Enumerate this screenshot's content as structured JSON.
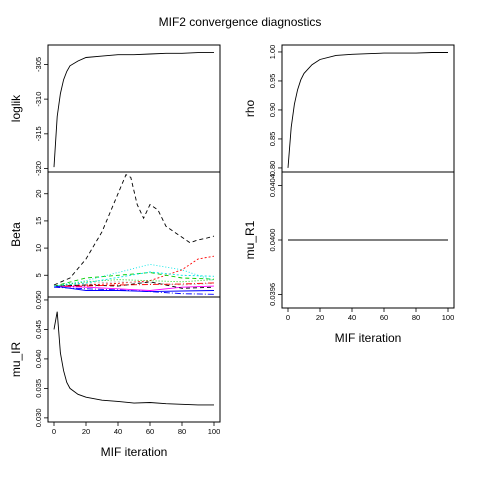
{
  "figure": {
    "title": "MIF2 convergence diagnostics"
  },
  "palette": [
    "#000000",
    "#ff0000",
    "#00cd00",
    "#0000ff",
    "#00e5e5",
    "#ff00ff",
    "#bebebe",
    "#000000",
    "#ff0000",
    "#00cd00",
    "#0000ff",
    "#00e5e5"
  ],
  "chart_data": [
    {
      "id": "loglik",
      "type": "line",
      "ylabel": "loglik",
      "xlabel": "",
      "xlim": [
        0,
        100
      ],
      "ylim": [
        -320.5,
        -302.2
      ],
      "yticks": [
        -320,
        -315,
        -310,
        -305
      ],
      "xticks": [],
      "series": [
        {
          "values": [
            [
              0,
              -319.8
            ],
            [
              2,
              -312.5
            ],
            [
              4,
              -309.2
            ],
            [
              6,
              -307.2
            ],
            [
              8,
              -306.0
            ],
            [
              10,
              -305.2
            ],
            [
              15,
              -304.5
            ],
            [
              20,
              -304.0
            ],
            [
              30,
              -303.8
            ],
            [
              40,
              -303.6
            ],
            [
              50,
              -303.6
            ],
            [
              60,
              -303.5
            ],
            [
              70,
              -303.4
            ],
            [
              80,
              -303.4
            ],
            [
              90,
              -303.3
            ],
            [
              100,
              -303.3
            ]
          ]
        }
      ]
    },
    {
      "id": "beta",
      "type": "line",
      "ylabel": "Beta",
      "xlabel": "",
      "xlim": [
        0,
        100
      ],
      "ylim": [
        1,
        24
      ],
      "yticks": [
        5,
        10,
        15,
        20
      ],
      "xticks": [],
      "series": [
        {
          "values": [
            [
              0,
              3.2
            ],
            [
              10,
              4.5
            ],
            [
              20,
              8
            ],
            [
              30,
              13
            ],
            [
              40,
              20
            ],
            [
              45,
              23.5
            ],
            [
              48,
              23
            ],
            [
              52,
              18
            ],
            [
              56,
              15.5
            ],
            [
              60,
              18
            ],
            [
              65,
              17
            ],
            [
              70,
              14
            ],
            [
              75,
              13
            ],
            [
              80,
              12
            ],
            [
              85,
              11
            ],
            [
              90,
              11.5
            ],
            [
              95,
              11.8
            ],
            [
              100,
              12.2
            ]
          ]
        },
        {
          "values": [
            [
              0,
              3
            ],
            [
              20,
              3.2
            ],
            [
              40,
              3.5
            ],
            [
              60,
              4
            ],
            [
              80,
              6
            ],
            [
              90,
              8
            ],
            [
              100,
              8.5
            ]
          ]
        },
        {
          "values": [
            [
              0,
              3
            ],
            [
              20,
              4.5
            ],
            [
              40,
              5
            ],
            [
              60,
              5.5
            ],
            [
              80,
              4.5
            ],
            [
              100,
              4.3
            ]
          ]
        },
        {
          "values": [
            [
              0,
              2.8
            ],
            [
              20,
              2.5
            ],
            [
              40,
              2.3
            ],
            [
              60,
              2.0
            ],
            [
              80,
              1.6
            ],
            [
              100,
              1.5
            ]
          ]
        },
        {
          "values": [
            [
              0,
              3
            ],
            [
              20,
              4
            ],
            [
              40,
              5.5
            ],
            [
              60,
              7
            ],
            [
              80,
              6
            ],
            [
              100,
              4
            ]
          ]
        },
        {
          "values": [
            [
              0,
              3
            ],
            [
              20,
              2.8
            ],
            [
              40,
              2.5
            ],
            [
              60,
              2.2
            ],
            [
              80,
              2.8
            ],
            [
              100,
              3
            ]
          ]
        },
        {
          "values": [
            [
              0,
              3
            ],
            [
              20,
              3.5
            ],
            [
              40,
              3.8
            ],
            [
              60,
              3.6
            ],
            [
              80,
              3.2
            ],
            [
              100,
              3.5
            ]
          ]
        },
        {
          "values": [
            [
              0,
              3
            ],
            [
              20,
              3.2
            ],
            [
              40,
              3.0
            ],
            [
              60,
              3.8
            ],
            [
              80,
              2.6
            ],
            [
              100,
              2.8
            ]
          ]
        },
        {
          "values": [
            [
              0,
              3
            ],
            [
              20,
              3.0
            ],
            [
              40,
              3.2
            ],
            [
              60,
              3.3
            ],
            [
              80,
              3.4
            ],
            [
              100,
              3.6
            ]
          ]
        },
        {
          "values": [
            [
              0,
              3
            ],
            [
              20,
              3.8
            ],
            [
              40,
              4.2
            ],
            [
              60,
              4.0
            ],
            [
              80,
              3.8
            ],
            [
              100,
              4.2
            ]
          ]
        },
        {
          "values": [
            [
              0,
              3
            ],
            [
              20,
              2.2
            ],
            [
              40,
              2.2
            ],
            [
              60,
              2.0
            ],
            [
              80,
              2.1
            ],
            [
              100,
              2.2
            ]
          ]
        },
        {
          "values": [
            [
              0,
              3
            ],
            [
              20,
              3.6
            ],
            [
              40,
              4.6
            ],
            [
              60,
              5.6
            ],
            [
              80,
              5.0
            ],
            [
              100,
              4.8
            ]
          ]
        }
      ]
    },
    {
      "id": "mu_ir",
      "type": "line",
      "ylabel": "mu_IR",
      "xlabel": "MIF iteration",
      "xlim": [
        0,
        100
      ],
      "ylim": [
        0.0293,
        0.0505
      ],
      "yticks": [
        0.03,
        0.035,
        0.04,
        0.045,
        0.05
      ],
      "xticks": [
        0,
        20,
        40,
        60,
        80,
        100
      ],
      "series": [
        {
          "values": [
            [
              0,
              0.045
            ],
            [
              2,
              0.048
            ],
            [
              4,
              0.041
            ],
            [
              6,
              0.038
            ],
            [
              8,
              0.036
            ],
            [
              10,
              0.035
            ],
            [
              15,
              0.034
            ],
            [
              20,
              0.0335
            ],
            [
              30,
              0.033
            ],
            [
              40,
              0.0328
            ],
            [
              50,
              0.0325
            ],
            [
              60,
              0.0326
            ],
            [
              70,
              0.0324
            ],
            [
              80,
              0.0323
            ],
            [
              90,
              0.0322
            ],
            [
              100,
              0.0322
            ]
          ]
        }
      ]
    },
    {
      "id": "rho",
      "type": "line",
      "ylabel": "rho",
      "xlabel": "",
      "xlim": [
        0,
        100
      ],
      "ylim": [
        0.793,
        1.012
      ],
      "yticks": [
        0.8,
        0.85,
        0.9,
        0.95,
        1.0
      ],
      "xticks": [],
      "series": [
        {
          "values": [
            [
              0,
              0.8
            ],
            [
              2,
              0.87
            ],
            [
              4,
              0.91
            ],
            [
              6,
              0.935
            ],
            [
              8,
              0.952
            ],
            [
              10,
              0.963
            ],
            [
              15,
              0.978
            ],
            [
              20,
              0.987
            ],
            [
              30,
              0.994
            ],
            [
              40,
              0.996
            ],
            [
              50,
              0.997
            ],
            [
              60,
              0.998
            ],
            [
              70,
              0.998
            ],
            [
              80,
              0.998
            ],
            [
              90,
              0.999
            ],
            [
              100,
              0.999
            ]
          ]
        }
      ]
    },
    {
      "id": "mu_r1",
      "type": "line",
      "ylabel": "mu_R1",
      "xlabel": "MIF iteration",
      "xlim": [
        0,
        100
      ],
      "ylim": [
        0.0395,
        0.0405
      ],
      "yticks": [
        0.0396,
        0.04,
        0.0404
      ],
      "xticks": [
        0,
        20,
        40,
        60,
        80,
        100
      ],
      "series": [
        {
          "values": [
            [
              0,
              0.04
            ],
            [
              100,
              0.04
            ]
          ]
        }
      ]
    }
  ]
}
